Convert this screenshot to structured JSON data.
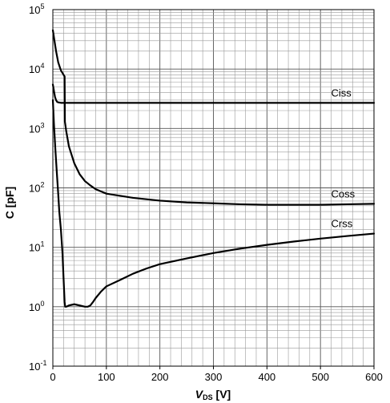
{
  "chart_data": {
    "type": "line",
    "title": "",
    "xlabel": {
      "main": "V",
      "sub": "DS",
      "unit": " [V]"
    },
    "ylabel": "C [pF]",
    "xlim": [
      0,
      600
    ],
    "ylim": [
      0.1,
      100000
    ],
    "yscale": "log",
    "grid": true,
    "x_ticks": [
      {
        "value": 0,
        "label": "0"
      },
      {
        "value": 100,
        "label": "100"
      },
      {
        "value": 200,
        "label": "200"
      },
      {
        "value": 300,
        "label": "300"
      },
      {
        "value": 400,
        "label": "400"
      },
      {
        "value": 500,
        "label": "500"
      },
      {
        "value": 600,
        "label": "600"
      }
    ],
    "y_ticks": [
      {
        "value": 0.1,
        "base": "10",
        "exp": "-1"
      },
      {
        "value": 1,
        "base": "10",
        "exp": "0"
      },
      {
        "value": 10,
        "base": "10",
        "exp": "1"
      },
      {
        "value": 100,
        "base": "10",
        "exp": "2"
      },
      {
        "value": 1000,
        "base": "10",
        "exp": "3"
      },
      {
        "value": 10000,
        "base": "10",
        "exp": "4"
      },
      {
        "value": 100000,
        "base": "10",
        "exp": "5"
      }
    ],
    "series": [
      {
        "name": "Ciss",
        "x": [
          0,
          2,
          4,
          6,
          8,
          10,
          15,
          20,
          30,
          50,
          100,
          200,
          300,
          400,
          500,
          600
        ],
        "values": [
          5500,
          4300,
          3400,
          3000,
          2800,
          2750,
          2700,
          2700,
          2700,
          2700,
          2700,
          2700,
          2700,
          2700,
          2700,
          2700
        ]
      },
      {
        "name": "Coss",
        "x": [
          0,
          3,
          6,
          10,
          15,
          20,
          22,
          22.5,
          25,
          30,
          40,
          50,
          60,
          70,
          80,
          100,
          150,
          200,
          250,
          300,
          350,
          400,
          450,
          500,
          550,
          600
        ],
        "values": [
          45000,
          30000,
          20000,
          13000,
          9500,
          8000,
          7500,
          1300,
          900,
          500,
          260,
          170,
          130,
          110,
          95,
          80,
          68,
          61,
          57,
          55,
          53,
          52,
          52,
          52,
          53,
          54
        ]
      },
      {
        "name": "Crss",
        "x": [
          0,
          2,
          5,
          8,
          10,
          12,
          15,
          18,
          20,
          22,
          23,
          25,
          30,
          40,
          50,
          60,
          65,
          70,
          75,
          80,
          90,
          100,
          125,
          150,
          175,
          200,
          250,
          300,
          350,
          400,
          450,
          500,
          550,
          600
        ],
        "values": [
          3000,
          1200,
          400,
          150,
          80,
          40,
          20,
          8,
          3,
          1.2,
          1.0,
          1.0,
          1.05,
          1.1,
          1.05,
          1.0,
          1.0,
          1.05,
          1.2,
          1.4,
          1.8,
          2.2,
          2.8,
          3.6,
          4.4,
          5.2,
          6.5,
          8.0,
          9.5,
          11,
          12.5,
          14,
          15.5,
          17
        ]
      }
    ],
    "colors": {
      "line": "#000000",
      "grid": "#999999",
      "axis": "#000000"
    }
  }
}
